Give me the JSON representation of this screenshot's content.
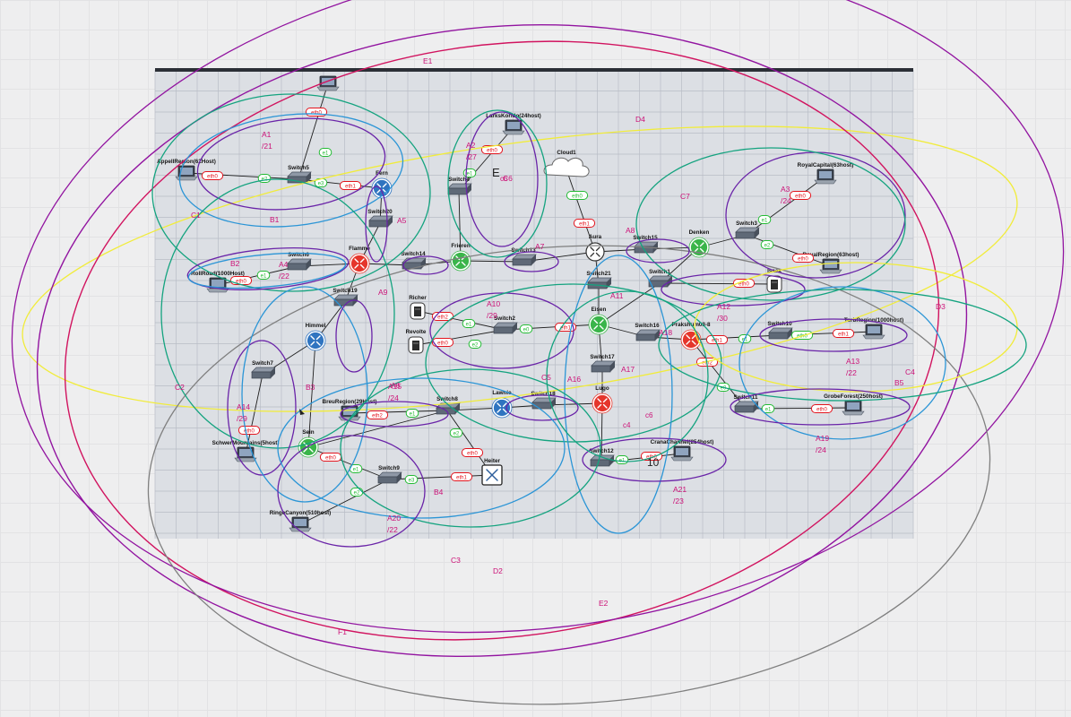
{
  "colors": {
    "background": "#eeeeef",
    "sheet": "#dcdfe4",
    "sheet_grid": "#b8bdc6",
    "sheet_top": "#2b2f36",
    "link": "#1f1f1f",
    "label_red": "#e4141d",
    "label_green": "#22bb33",
    "area_text": "#cc1177",
    "router_red": "#e5352b",
    "router_green": "#3ab54a",
    "router_blue": "#2f74c0",
    "teal": "#14a37f",
    "blue": "#2b95d6",
    "purple": "#6a24a8",
    "magenta": "#d1135f",
    "violet": "#9214a0",
    "yellow": "#f1ec3a",
    "gray": "#7f7f7f"
  },
  "diagram": {
    "nodes": [
      {
        "id": "pc_top",
        "type": "pc",
        "label": ""
      },
      {
        "id": "appell",
        "type": "pc",
        "label": "AppellRegion(62Host)"
      },
      {
        "id": "switch5",
        "type": "switch",
        "label": "Switch5"
      },
      {
        "id": "fern",
        "type": "router_blue",
        "label": "Fern"
      },
      {
        "id": "switch20",
        "type": "switch",
        "label": "Switch20"
      },
      {
        "id": "larks",
        "type": "pc",
        "label": "LarksKorido(24host)"
      },
      {
        "id": "switch4",
        "type": "switch",
        "label": "Switch4"
      },
      {
        "id": "cloud1",
        "type": "cloud",
        "label": "Cloud1"
      },
      {
        "id": "royalcap",
        "type": "pc",
        "label": "RoyalCapital(63host)"
      },
      {
        "id": "switch3",
        "type": "switch",
        "label": "Switch3"
      },
      {
        "id": "royalregion",
        "type": "pc",
        "label": "RoyalRegion(63host)"
      },
      {
        "id": "isaak",
        "type": "server",
        "label": "Isaak"
      },
      {
        "id": "denken",
        "type": "router_green",
        "label": "Denken"
      },
      {
        "id": "switch15",
        "type": "switch",
        "label": "Switch15"
      },
      {
        "id": "aura",
        "type": "router_plain",
        "label": "Aura"
      },
      {
        "id": "switch13",
        "type": "switch",
        "label": "Switch13"
      },
      {
        "id": "frieren",
        "type": "router_green",
        "label": "Frieren"
      },
      {
        "id": "switch14",
        "type": "switch",
        "label": "Switch14"
      },
      {
        "id": "flamme",
        "type": "router_red",
        "label": "Flamme"
      },
      {
        "id": "switch6",
        "type": "switch",
        "label": "Switch6"
      },
      {
        "id": "rollroad",
        "type": "pc",
        "label": "RollRoad(1000Host)"
      },
      {
        "id": "switch19",
        "type": "switch",
        "label": "Switch19"
      },
      {
        "id": "himmel",
        "type": "router_blue",
        "label": "Himmel"
      },
      {
        "id": "switch7",
        "type": "switch",
        "label": "Switch7"
      },
      {
        "id": "schwer",
        "type": "pc",
        "label": "SchwerMountains(5host)"
      },
      {
        "id": "richer",
        "type": "server",
        "label": "Richer"
      },
      {
        "id": "revolte",
        "type": "server",
        "label": "Revolte"
      },
      {
        "id": "switch2",
        "type": "switch",
        "label": "Switch2"
      },
      {
        "id": "switch21",
        "type": "switch",
        "label": "Switch21"
      },
      {
        "id": "switch1",
        "type": "switch",
        "label": "Switch1"
      },
      {
        "id": "eisen",
        "type": "router_green",
        "label": "Eisen"
      },
      {
        "id": "switch16",
        "type": "switch",
        "label": "Switch16"
      },
      {
        "id": "prakshu",
        "type": "router_red",
        "label": "Prakshum03-8"
      },
      {
        "id": "switch10",
        "type": "switch",
        "label": "Switch10"
      },
      {
        "id": "torbregion",
        "type": "pc",
        "label": "TorbRegion(1000host)"
      },
      {
        "id": "switch17",
        "type": "switch",
        "label": "Switch17"
      },
      {
        "id": "lugo",
        "type": "router_red",
        "label": "Lugo"
      },
      {
        "id": "switch11",
        "type": "switch",
        "label": "Switch11"
      },
      {
        "id": "grobe",
        "type": "pc",
        "label": "GrobeForest(250host)"
      },
      {
        "id": "breu",
        "type": "pc",
        "label": "BreuRegion(29Host)"
      },
      {
        "id": "switch8",
        "type": "switch",
        "label": "Switch8"
      },
      {
        "id": "lawnie",
        "type": "router_blue",
        "label": "Lawnie"
      },
      {
        "id": "switch18",
        "type": "switch",
        "label": "Switch18"
      },
      {
        "id": "sein",
        "type": "router_green",
        "label": "Sein"
      },
      {
        "id": "switch9",
        "type": "switch",
        "label": "Switch9"
      },
      {
        "id": "heiter",
        "type": "l3switch",
        "label": "Heiter"
      },
      {
        "id": "ringe",
        "type": "pc",
        "label": "RingeCanyon(510host)"
      },
      {
        "id": "switch12",
        "type": "switch",
        "label": "Switch12"
      },
      {
        "id": "cranes",
        "type": "pc",
        "label": "CranaChannel(254host)"
      }
    ],
    "port_labels": [
      "eth0",
      "e1",
      "e2",
      "e3",
      "eth1",
      "eth2"
    ],
    "subnets": [
      {
        "name": "A1",
        "mask": "/21"
      },
      {
        "name": "A2",
        "mask": "/27"
      },
      {
        "name": "A3",
        "mask": "/24"
      },
      {
        "name": "A4",
        "mask": "/22"
      },
      {
        "name": "A5",
        "mask": ""
      },
      {
        "name": "A6",
        "mask": ""
      },
      {
        "name": "A7",
        "mask": ""
      },
      {
        "name": "A8",
        "mask": ""
      },
      {
        "name": "A9",
        "mask": ""
      },
      {
        "name": "A10",
        "mask": "/29"
      },
      {
        "name": "A11",
        "mask": ""
      },
      {
        "name": "A12",
        "mask": "/30"
      },
      {
        "name": "A13",
        "mask": "/22"
      },
      {
        "name": "A14",
        "mask": "/29"
      },
      {
        "name": "A15",
        "mask": "/24"
      },
      {
        "name": "A16",
        "mask": ""
      },
      {
        "name": "A17",
        "mask": ""
      },
      {
        "name": "A18",
        "mask": ""
      },
      {
        "name": "A19",
        "mask": "/24"
      },
      {
        "name": "A20",
        "mask": "/22"
      },
      {
        "name": "A21",
        "mask": "/23"
      }
    ],
    "group_labels": [
      "B1",
      "B2",
      "B3",
      "B4",
      "B5",
      "C1",
      "C2",
      "C3",
      "C4",
      "C5",
      "C6",
      "C7",
      "D2",
      "D3",
      "D4",
      "E1",
      "E2",
      "F1"
    ],
    "misc_text": [
      "E",
      "c6",
      "c4",
      "c6",
      "10"
    ]
  }
}
